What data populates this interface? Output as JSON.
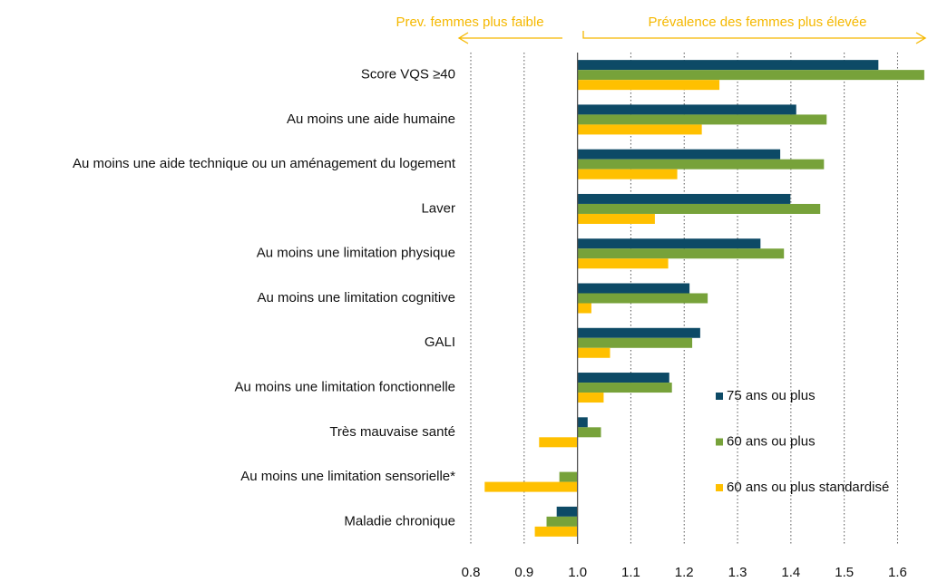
{
  "chart_data": {
    "type": "hbar",
    "annotations": [
      "Prev. femmes plus faible",
      "Prévalence des femmes plus élevée"
    ],
    "categories": [
      "Score VQS ≥40",
      "Au moins une aide humaine",
      "Au moins une aide technique ou un aménagement du logement",
      "Laver",
      "Au moins une limitation physique",
      "Au moins une limitation cognitive",
      "GALI",
      "Au moins une limitation fonctionnelle",
      "Très mauvaise santé",
      "Au moins une limitation sensorielle*",
      "Maladie chronique"
    ],
    "series": [
      {
        "name": "75 ans ou plus",
        "color": "#0d4a66",
        "values": [
          1.564,
          1.41,
          1.38,
          1.399,
          1.343,
          1.21,
          1.23,
          1.172,
          1.019,
          null,
          0.961
        ]
      },
      {
        "name": "60 ans ou plus",
        "color": "#77a23a",
        "values": [
          1.65,
          1.467,
          1.462,
          1.455,
          1.387,
          1.244,
          1.215,
          1.177,
          1.044,
          0.966,
          0.942
        ]
      },
      {
        "name": "60 ans ou plus standardisé",
        "color": "#ffc000",
        "values": [
          1.266,
          1.233,
          1.187,
          1.145,
          1.17,
          1.026,
          1.061,
          1.049,
          0.928,
          0.826,
          0.92
        ]
      }
    ],
    "xlim": [
      0.8,
      1.657
    ],
    "xticks": [
      0.8,
      0.9,
      {
        "value": 1,
        "label": "1.0"
      },
      1.1,
      1.2,
      1.3,
      1.4,
      1.5,
      1.6
    ],
    "baseline": 1,
    "grid": true
  }
}
